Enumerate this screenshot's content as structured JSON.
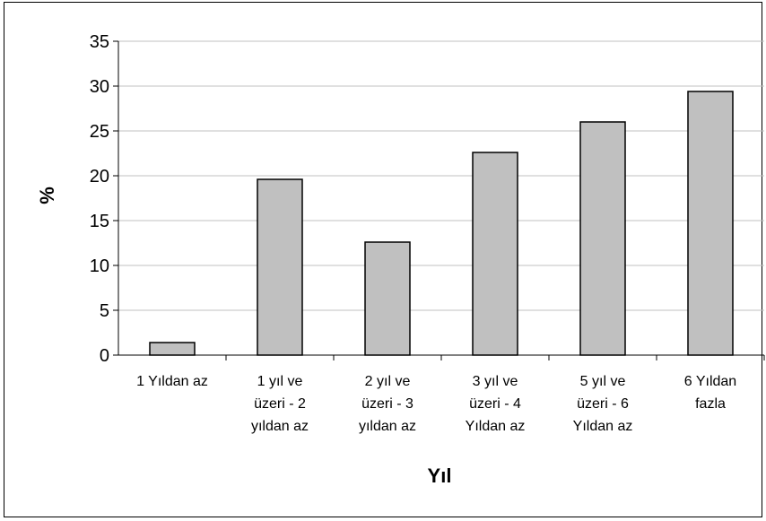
{
  "chart_data": {
    "type": "bar",
    "title": "",
    "xlabel": "Yıl",
    "ylabel": "%",
    "ylim": [
      0,
      35
    ],
    "yticks": [
      0,
      5,
      10,
      15,
      20,
      25,
      30,
      35
    ],
    "grid": true,
    "legend": "none",
    "bar_color": "#c0c0c0",
    "categories": [
      [
        "1 Yıldan az"
      ],
      [
        "1 yıl ve",
        "üzeri - 2",
        "yıldan az"
      ],
      [
        "2 yıl ve",
        "üzeri - 3",
        "yıldan az"
      ],
      [
        "3 yıl ve",
        "üzeri - 4",
        "Yıldan az"
      ],
      [
        "5 yıl ve",
        "üzeri - 6",
        "Yıldan az"
      ],
      [
        "6 Yıldan",
        "fazla"
      ]
    ],
    "values": [
      1.4,
      19.6,
      12.6,
      22.6,
      26.0,
      29.4
    ]
  }
}
